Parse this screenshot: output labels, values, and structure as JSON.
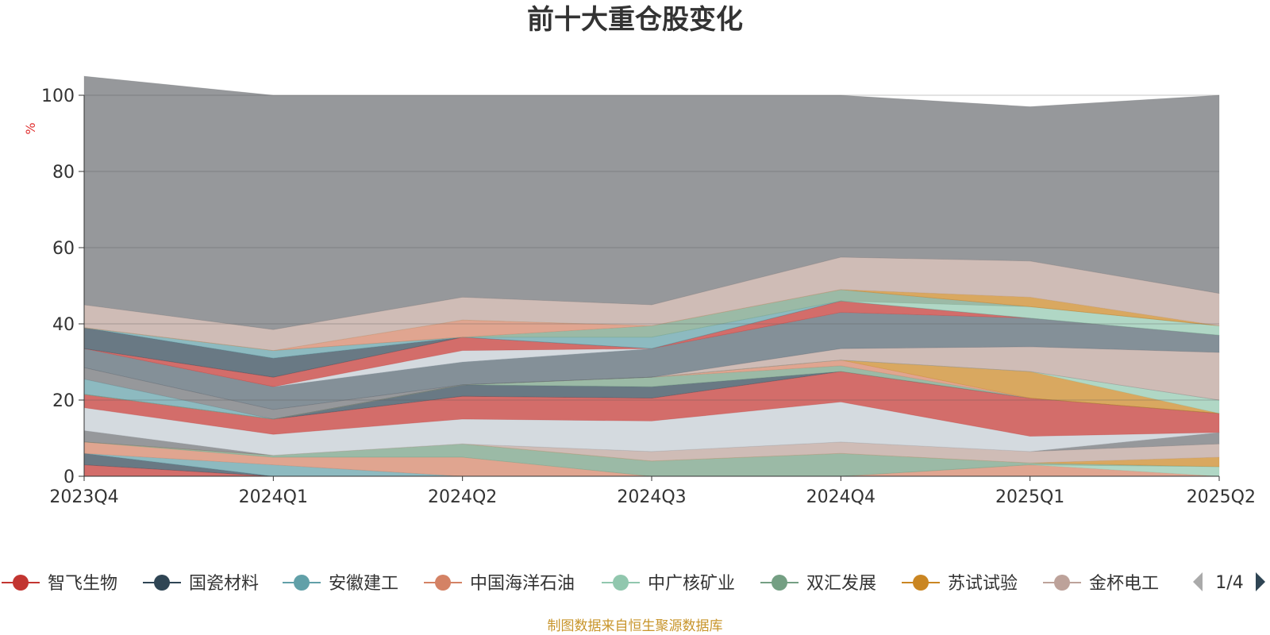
{
  "chart_data": {
    "type": "area",
    "title": "前十大重仓股变化",
    "ylabel": "%",
    "ylim": [
      0,
      100
    ],
    "yticks": [
      0,
      20,
      40,
      60,
      80,
      100
    ],
    "categories": [
      "2023Q4",
      "2024Q1",
      "2024Q2",
      "2024Q3",
      "2024Q4",
      "2025Q1",
      "2025Q2"
    ],
    "grid": true,
    "source_note": "制图数据来自恒生聚源数据库",
    "pagination": "1/4",
    "legend": [
      {
        "name": "智飞生物",
        "color": "#c23531"
      },
      {
        "name": "国瓷材料",
        "color": "#2f4554"
      },
      {
        "name": "安徽建工",
        "color": "#61a0a8"
      },
      {
        "name": "中国海洋石油",
        "color": "#d48265"
      },
      {
        "name": "中广核矿业",
        "color": "#91c7ae"
      },
      {
        "name": "双汇发展",
        "color": "#749f83"
      },
      {
        "name": "苏试试验",
        "color": "#ca8622"
      },
      {
        "name": "金杯电工",
        "color": "#bda29a"
      }
    ],
    "layers": [
      {
        "color": "#c23531",
        "values": [
          3,
          0,
          0,
          0,
          0,
          0,
          0
        ]
      },
      {
        "color": "#2f4554",
        "values": [
          3,
          0,
          0,
          0,
          0,
          0,
          0
        ]
      },
      {
        "color": "#61a0a8",
        "values": [
          0,
          3,
          0,
          0,
          0,
          0,
          0
        ]
      },
      {
        "color": "#d48265",
        "values": [
          3,
          2,
          5,
          0,
          0,
          3,
          0
        ]
      },
      {
        "color": "#91c7ae",
        "values": [
          0,
          0,
          0,
          0,
          0,
          0,
          2.5
        ]
      },
      {
        "color": "#749f83",
        "values": [
          0,
          0.5,
          3.5,
          4,
          6,
          0.5,
          0
        ]
      },
      {
        "color": "#ca8622",
        "values": [
          0,
          0,
          0,
          0,
          0,
          0,
          2.5
        ]
      },
      {
        "color": "#bda29a",
        "values": [
          0,
          0,
          0,
          2.5,
          3,
          3,
          3.5
        ]
      },
      {
        "color": "#6e7074",
        "values": [
          3,
          0,
          0,
          0,
          0,
          0,
          3
        ]
      },
      {
        "color": "#c4ccd3",
        "values": [
          6,
          5.5,
          6.5,
          8,
          10.5,
          4,
          0
        ]
      },
      {
        "color": "#c23531",
        "values": [
          3.5,
          4,
          6,
          6,
          8,
          10,
          5
        ]
      },
      {
        "color": "#2f4554",
        "values": [
          0,
          0,
          3,
          3,
          0,
          0,
          0
        ]
      },
      {
        "color": "#749f83",
        "values": [
          0,
          0,
          0,
          2.5,
          1.5,
          0,
          0
        ]
      },
      {
        "color": "#d48265",
        "values": [
          0,
          0,
          0,
          0,
          1.5,
          0,
          0
        ]
      },
      {
        "color": "#ca8622",
        "values": [
          0,
          0,
          0,
          0,
          0,
          7,
          0
        ]
      },
      {
        "color": "#91c7ae",
        "values": [
          0,
          0,
          0,
          0,
          0,
          0,
          3.5
        ]
      },
      {
        "color": "#61a0a8",
        "values": [
          4,
          0,
          0,
          0,
          0,
          0,
          0
        ]
      },
      {
        "color": "#6e7074",
        "values": [
          3,
          2.5,
          0,
          0,
          0,
          0,
          0
        ]
      },
      {
        "color": "#bda29a",
        "values": [
          0,
          0,
          0,
          0,
          3,
          6.5,
          12.5
        ]
      },
      {
        "color": "#546570",
        "values": [
          5,
          6,
          6,
          7.5,
          9.5,
          7.5,
          4.5
        ]
      },
      {
        "color": "#c4ccd3",
        "values": [
          0,
          0,
          3,
          0,
          0,
          0,
          0
        ]
      },
      {
        "color": "#c23531",
        "values": [
          0,
          2.5,
          3.5,
          0,
          3,
          0,
          0
        ]
      },
      {
        "color": "#2f4554",
        "values": [
          5.5,
          5,
          0,
          0,
          0,
          0,
          0
        ]
      },
      {
        "color": "#61a0a8",
        "values": [
          0,
          2,
          0,
          3,
          0,
          0,
          0
        ]
      },
      {
        "color": "#91c7ae",
        "values": [
          0,
          0,
          0,
          0,
          0,
          3,
          2.5
        ]
      },
      {
        "color": "#749f83",
        "values": [
          0,
          0,
          0,
          3,
          3,
          0,
          0
        ]
      },
      {
        "color": "#d48265",
        "values": [
          0,
          0,
          4.5,
          0,
          0,
          0,
          0
        ]
      },
      {
        "color": "#ca8622",
        "values": [
          0,
          0,
          0,
          0,
          0,
          2.5,
          0
        ]
      },
      {
        "color": "#bda29a",
        "values": [
          6,
          5.5,
          6,
          5.5,
          8.5,
          9.5,
          8.5
        ]
      },
      {
        "color": "#6e7074",
        "values": [
          60,
          61.5,
          53,
          55,
          42.5,
          40.5,
          52
        ]
      }
    ]
  }
}
